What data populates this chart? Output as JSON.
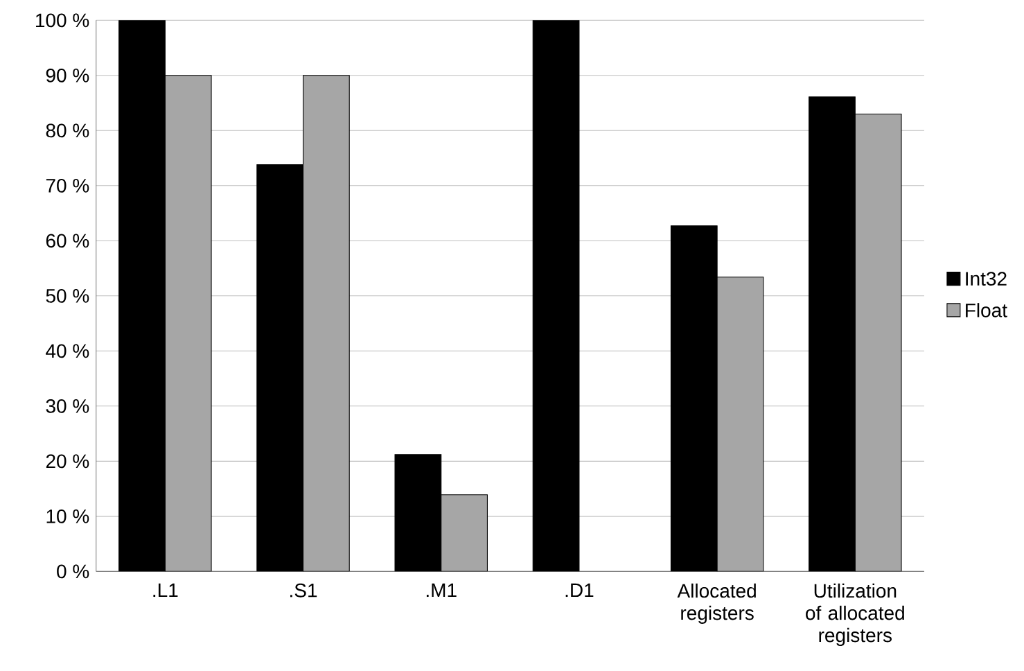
{
  "chart_data": {
    "type": "bar",
    "categories": [
      ".L1",
      ".S1",
      ".M1",
      ".D1",
      "Allocated registers",
      "Utilization of allocated registers"
    ],
    "series": [
      {
        "name": "Int32",
        "color": "#000000",
        "values": [
          100,
          73.8,
          21.2,
          100,
          62.7,
          86.1
        ]
      },
      {
        "name": "Float",
        "color": "#a6a6a6",
        "values": [
          90,
          90,
          13.9,
          null,
          53.4,
          83
        ]
      }
    ],
    "ylim": [
      0,
      100
    ],
    "yticks": [
      {
        "value": 0,
        "label": "0 %"
      },
      {
        "value": 10,
        "label": "10 %"
      },
      {
        "value": 20,
        "label": "20 %"
      },
      {
        "value": 30,
        "label": "30 %"
      },
      {
        "value": 40,
        "label": "40 %"
      },
      {
        "value": 50,
        "label": "50 %"
      },
      {
        "value": 60,
        "label": "60 %"
      },
      {
        "value": 70,
        "label": "70 %"
      },
      {
        "value": 80,
        "label": "80 %"
      },
      {
        "value": 90,
        "label": "90 %"
      },
      {
        "value": 100,
        "label": "100 %"
      }
    ],
    "grid": "y",
    "legend": "right"
  }
}
